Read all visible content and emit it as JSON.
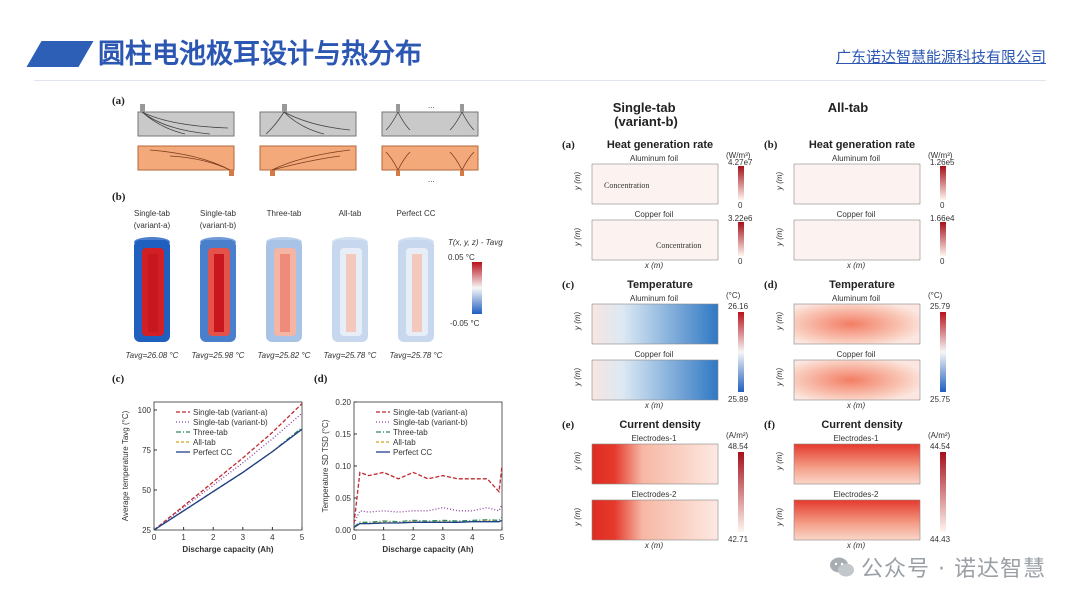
{
  "header": {
    "title": "圆柱电池极耳设计与热分布",
    "company": "广东诺达智慧能源科技有限公司"
  },
  "watermark": {
    "text": "公众号 · 诺达智慧"
  },
  "left_figure": {
    "a_label": "(a)",
    "b_label": "(b)",
    "c_label": "(c)",
    "d_label": "(d)",
    "dots": "...",
    "cells": [
      {
        "name": "Single-tab\n(variant-a)",
        "tavg": "Tavg=26.08 °C"
      },
      {
        "name": "Single-tab\n(variant-b)",
        "tavg": "Tavg=25.98 °C"
      },
      {
        "name": "Three-tab",
        "tavg": "Tavg=25.82 °C"
      },
      {
        "name": "All-tab",
        "tavg": "Tavg=25.78 °C"
      },
      {
        "name": "Perfect CC",
        "tavg": "Tavg=25.78 °C"
      }
    ],
    "colorbar": {
      "title": "T(x, y, z) - Tavg",
      "max": "0.05 °C",
      "min": "-0.05 °C"
    }
  },
  "right_figure": {
    "col1": "Single-tab\n(variant-b)",
    "col2": "All-tab",
    "panels": [
      {
        "label": "(a)",
        "title": "Heat generation rate",
        "sub1": "Aluminum foil",
        "sub2": "Copper foil",
        "unit": "(W/m³)",
        "top1": "4.27e7",
        "bot1": "0",
        "top2": "3.22e6",
        "bot2": "0",
        "note1": "Concentration",
        "note2": "Concentration"
      },
      {
        "label": "(b)",
        "title": "Heat generation rate",
        "sub1": "Aluminum foil",
        "sub2": "Copper foil",
        "unit": "(W/m³)",
        "top1": "1.26e5",
        "bot1": "0",
        "top2": "1.66e4",
        "bot2": "0"
      },
      {
        "label": "(c)",
        "title": "Temperature",
        "sub1": "Aluminum foil",
        "sub2": "Copper foil",
        "unit": "(°C)",
        "top1": "26.16",
        "bot1": "25.89"
      },
      {
        "label": "(d)",
        "title": "Temperature",
        "sub1": "Aluminum foil",
        "sub2": "Copper foil",
        "unit": "(°C)",
        "top1": "25.79",
        "bot1": "25.75"
      },
      {
        "label": "(e)",
        "title": "Current density",
        "sub1": "Electrodes-1",
        "sub2": "Electrodes-2",
        "unit": "(A/m²)",
        "top1": "48.54",
        "bot1": "42.71"
      },
      {
        "label": "(f)",
        "title": "Current density",
        "sub1": "Electrodes-1",
        "sub2": "Electrodes-2",
        "unit": "(A/m²)",
        "top1": "44.54",
        "bot1": "44.43"
      }
    ],
    "xlabel": "x (m)",
    "ylabel": "y (m)"
  },
  "chart_data": [
    {
      "type": "line",
      "panel": "(c)",
      "xlabel": "Discharge capacity (Ah)",
      "ylabel": "Average temperature Tavg (°C)",
      "xlim": [
        0,
        5
      ],
      "ylim": [
        25,
        105
      ],
      "xticks": [
        0,
        1,
        2,
        3,
        4,
        5
      ],
      "yticks": [
        25,
        50,
        75,
        100
      ],
      "x": [
        0,
        1,
        2,
        3,
        4,
        5
      ],
      "series": [
        {
          "name": "Single-tab (variant-a)",
          "color": "#c0282d",
          "dash": "4,2",
          "values": [
            25,
            40,
            55,
            70,
            86,
            104
          ]
        },
        {
          "name": "Single-tab (variant-b)",
          "color": "#8a3fa0",
          "dash": "1,2",
          "values": [
            25,
            39,
            53,
            67,
            82,
            98
          ]
        },
        {
          "name": "Three-tab",
          "color": "#2e8b57",
          "dash": "5,2,1,2",
          "values": [
            25,
            37,
            49,
            61,
            74,
            89
          ]
        },
        {
          "name": "All-tab",
          "color": "#d4a017",
          "dash": "3,2",
          "values": [
            25,
            37,
            49,
            61,
            74,
            88
          ]
        },
        {
          "name": "Perfect CC",
          "color": "#1f3f8f",
          "dash": "",
          "values": [
            25,
            37,
            49,
            61,
            74,
            88
          ]
        }
      ]
    },
    {
      "type": "line",
      "panel": "(d)",
      "xlabel": "Discharge capacity (Ah)",
      "ylabel": "Temperature SD TSD (°C)",
      "xlim": [
        0,
        5
      ],
      "ylim": [
        0,
        0.2
      ],
      "xticks": [
        0,
        1,
        2,
        3,
        4,
        5
      ],
      "yticks": [
        0.0,
        0.05,
        0.1,
        0.15,
        0.2
      ],
      "x": [
        0,
        0.2,
        0.5,
        1,
        1.5,
        2,
        2.5,
        3,
        3.5,
        4,
        4.5,
        4.9,
        5
      ],
      "series": [
        {
          "name": "Single-tab (variant-a)",
          "color": "#c0282d",
          "dash": "4,2",
          "values": [
            0.01,
            0.09,
            0.085,
            0.09,
            0.08,
            0.09,
            0.08,
            0.085,
            0.08,
            0.08,
            0.08,
            0.06,
            0.1
          ]
        },
        {
          "name": "Single-tab (variant-b)",
          "color": "#8a3fa0",
          "dash": "1,2",
          "values": [
            0.01,
            0.03,
            0.028,
            0.03,
            0.028,
            0.03,
            0.03,
            0.035,
            0.03,
            0.03,
            0.035,
            0.03,
            0.04
          ]
        },
        {
          "name": "Three-tab",
          "color": "#2e8b57",
          "dash": "5,2,1,2",
          "values": [
            0.005,
            0.012,
            0.012,
            0.014,
            0.013,
            0.015,
            0.014,
            0.015,
            0.014,
            0.015,
            0.016,
            0.015,
            0.02
          ]
        },
        {
          "name": "All-tab",
          "color": "#d4a017",
          "dash": "3,2",
          "values": [
            0.004,
            0.01,
            0.01,
            0.012,
            0.011,
            0.013,
            0.012,
            0.013,
            0.012,
            0.013,
            0.014,
            0.013,
            0.016
          ]
        },
        {
          "name": "Perfect CC",
          "color": "#1f3f8f",
          "dash": "",
          "values": [
            0.004,
            0.01,
            0.01,
            0.011,
            0.011,
            0.012,
            0.012,
            0.012,
            0.012,
            0.013,
            0.013,
            0.013,
            0.015
          ]
        }
      ]
    }
  ]
}
